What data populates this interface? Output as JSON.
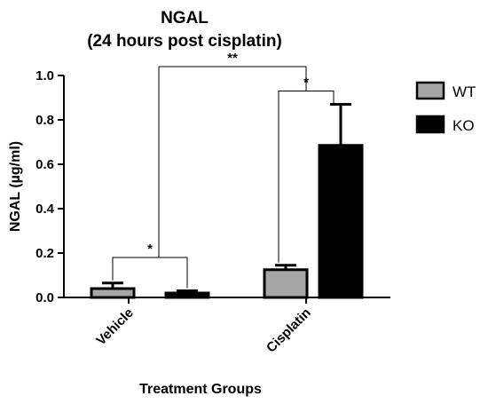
{
  "chart_data": {
    "type": "bar",
    "title": [
      "NGAL",
      "(24 hours post cisplatin)"
    ],
    "xlabel": "Treatment Groups",
    "ylabel": "NGAL (µg/ml)",
    "ylim": [
      0,
      1.0
    ],
    "yticks": [
      "0.0",
      "0.2",
      "0.4",
      "0.6",
      "0.8",
      "1.0"
    ],
    "categories": [
      "Vehicle",
      "Cisplatin"
    ],
    "series": [
      {
        "name": "WT",
        "color": "#a6a6a6",
        "values": [
          0.04,
          0.125
        ],
        "errors": [
          0.025,
          0.02
        ]
      },
      {
        "name": "KO",
        "color": "#000000",
        "values": [
          0.02,
          0.685
        ],
        "errors": [
          0.01,
          0.185
        ]
      }
    ],
    "legend_position": "right",
    "grid": false,
    "significance": [
      {
        "label": "*",
        "between": [
          "Vehicle/WT",
          "Vehicle/KO"
        ]
      },
      {
        "label": "*",
        "between": [
          "Cisplatin/WT",
          "Cisplatin/KO"
        ]
      },
      {
        "label": "**",
        "between": [
          "Vehicle",
          "Cisplatin"
        ]
      }
    ]
  }
}
